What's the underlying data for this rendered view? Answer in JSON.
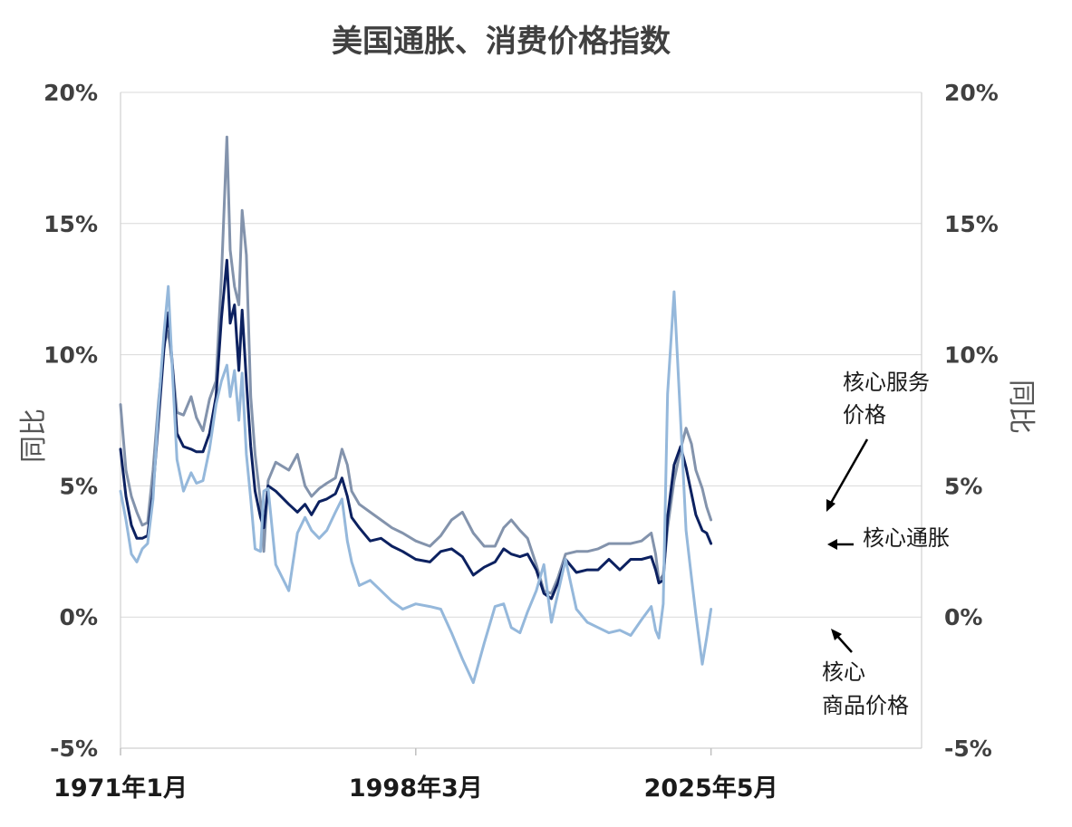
{
  "chart_data": {
    "type": "line",
    "title": "美国通胀、消费价格指数",
    "ylabel_left": "同比",
    "ylabel_right": "同比",
    "ylim": [
      -5,
      20
    ],
    "yticks": [
      -5,
      0,
      5,
      10,
      15,
      20
    ],
    "ytick_labels": [
      "-5%",
      "0%",
      "5%",
      "10%",
      "15%",
      "20%"
    ],
    "xlim": [
      1971.0,
      2044.8
    ],
    "x_tick_values": [
      1971.0,
      1998.2,
      2025.4
    ],
    "x_tick_labels": [
      "1971年1月",
      "1998年3月",
      "2025年5月"
    ],
    "grid": true,
    "series": [
      {
        "name": "核心服务价格",
        "color": "#8393ac",
        "points": [
          [
            1971.0,
            8.1
          ],
          [
            1971.5,
            5.6
          ],
          [
            1972.0,
            4.6
          ],
          [
            1972.5,
            4.0
          ],
          [
            1973.0,
            3.5
          ],
          [
            1973.5,
            3.6
          ],
          [
            1974.0,
            5.6
          ],
          [
            1974.5,
            8.2
          ],
          [
            1975.0,
            10.4
          ],
          [
            1975.4,
            10.9
          ],
          [
            1975.8,
            9.5
          ],
          [
            1976.2,
            7.8
          ],
          [
            1976.8,
            7.7
          ],
          [
            1977.5,
            8.4
          ],
          [
            1978.0,
            7.6
          ],
          [
            1978.6,
            7.1
          ],
          [
            1979.2,
            8.3
          ],
          [
            1979.8,
            9.0
          ],
          [
            1980.3,
            13.0
          ],
          [
            1980.8,
            18.3
          ],
          [
            1981.1,
            14.0
          ],
          [
            1981.5,
            12.6
          ],
          [
            1981.9,
            11.9
          ],
          [
            1982.2,
            15.5
          ],
          [
            1982.6,
            13.8
          ],
          [
            1983.0,
            8.4
          ],
          [
            1983.4,
            6.2
          ],
          [
            1983.9,
            4.4
          ],
          [
            1984.2,
            2.5
          ],
          [
            1984.6,
            5.2
          ],
          [
            1985.3,
            5.9
          ],
          [
            1986.5,
            5.6
          ],
          [
            1987.3,
            6.2
          ],
          [
            1988.0,
            5.0
          ],
          [
            1988.6,
            4.6
          ],
          [
            1989.3,
            4.9
          ],
          [
            1990.0,
            5.1
          ],
          [
            1990.8,
            5.3
          ],
          [
            1991.4,
            6.4
          ],
          [
            1991.9,
            5.8
          ],
          [
            1992.3,
            4.8
          ],
          [
            1993.0,
            4.3
          ],
          [
            1994.0,
            4.0
          ],
          [
            1995.0,
            3.7
          ],
          [
            1996.0,
            3.4
          ],
          [
            1997.0,
            3.2
          ],
          [
            1998.2,
            2.9
          ],
          [
            1999.5,
            2.7
          ],
          [
            2000.5,
            3.1
          ],
          [
            2001.5,
            3.7
          ],
          [
            2002.5,
            4.0
          ],
          [
            2003.5,
            3.2
          ],
          [
            2004.5,
            2.7
          ],
          [
            2005.5,
            2.7
          ],
          [
            2006.3,
            3.4
          ],
          [
            2007.0,
            3.7
          ],
          [
            2007.8,
            3.3
          ],
          [
            2008.5,
            3.0
          ],
          [
            2009.3,
            2.0
          ],
          [
            2010.0,
            1.0
          ],
          [
            2010.7,
            0.9
          ],
          [
            2011.3,
            1.5
          ],
          [
            2012.0,
            2.4
          ],
          [
            2013.0,
            2.5
          ],
          [
            2014.0,
            2.5
          ],
          [
            2015.0,
            2.6
          ],
          [
            2016.0,
            2.8
          ],
          [
            2017.0,
            2.8
          ],
          [
            2018.0,
            2.8
          ],
          [
            2019.0,
            2.9
          ],
          [
            2019.9,
            3.2
          ],
          [
            2020.3,
            2.4
          ],
          [
            2020.6,
            1.4
          ],
          [
            2021.0,
            1.6
          ],
          [
            2021.4,
            3.4
          ],
          [
            2022.0,
            5.2
          ],
          [
            2022.6,
            6.4
          ],
          [
            2023.1,
            7.2
          ],
          [
            2023.6,
            6.6
          ],
          [
            2024.0,
            5.6
          ],
          [
            2024.6,
            4.9
          ],
          [
            2025.0,
            4.2
          ],
          [
            2025.4,
            3.7
          ]
        ]
      },
      {
        "name": "核心通胀",
        "color": "#0c2160",
        "points": [
          [
            1971.0,
            6.4
          ],
          [
            1971.5,
            4.6
          ],
          [
            1972.0,
            3.5
          ],
          [
            1972.5,
            3.0
          ],
          [
            1973.0,
            3.0
          ],
          [
            1973.5,
            3.1
          ],
          [
            1974.0,
            4.8
          ],
          [
            1974.5,
            7.5
          ],
          [
            1975.0,
            10.2
          ],
          [
            1975.4,
            11.6
          ],
          [
            1975.8,
            9.5
          ],
          [
            1976.2,
            7.0
          ],
          [
            1976.8,
            6.5
          ],
          [
            1977.5,
            6.4
          ],
          [
            1978.0,
            6.3
          ],
          [
            1978.6,
            6.3
          ],
          [
            1979.2,
            7.0
          ],
          [
            1979.8,
            8.4
          ],
          [
            1980.3,
            11.4
          ],
          [
            1980.8,
            13.6
          ],
          [
            1981.1,
            11.2
          ],
          [
            1981.5,
            11.9
          ],
          [
            1981.9,
            9.4
          ],
          [
            1982.2,
            11.7
          ],
          [
            1982.6,
            9.0
          ],
          [
            1983.0,
            6.5
          ],
          [
            1983.4,
            4.8
          ],
          [
            1983.9,
            3.8
          ],
          [
            1984.2,
            3.4
          ],
          [
            1984.6,
            5.0
          ],
          [
            1985.3,
            4.8
          ],
          [
            1986.5,
            4.3
          ],
          [
            1987.3,
            4.0
          ],
          [
            1988.0,
            4.3
          ],
          [
            1988.6,
            3.9
          ],
          [
            1989.3,
            4.4
          ],
          [
            1990.0,
            4.5
          ],
          [
            1990.8,
            4.7
          ],
          [
            1991.4,
            5.3
          ],
          [
            1991.9,
            4.6
          ],
          [
            1992.3,
            3.8
          ],
          [
            1993.0,
            3.4
          ],
          [
            1994.0,
            2.9
          ],
          [
            1995.0,
            3.0
          ],
          [
            1996.0,
            2.7
          ],
          [
            1997.0,
            2.5
          ],
          [
            1998.2,
            2.2
          ],
          [
            1999.5,
            2.1
          ],
          [
            2000.5,
            2.5
          ],
          [
            2001.5,
            2.6
          ],
          [
            2002.5,
            2.3
          ],
          [
            2003.5,
            1.6
          ],
          [
            2004.5,
            1.9
          ],
          [
            2005.5,
            2.1
          ],
          [
            2006.3,
            2.6
          ],
          [
            2007.0,
            2.4
          ],
          [
            2007.8,
            2.3
          ],
          [
            2008.5,
            2.4
          ],
          [
            2009.3,
            1.8
          ],
          [
            2010.0,
            0.9
          ],
          [
            2010.7,
            0.7
          ],
          [
            2011.3,
            1.3
          ],
          [
            2012.0,
            2.2
          ],
          [
            2013.0,
            1.7
          ],
          [
            2014.0,
            1.8
          ],
          [
            2015.0,
            1.8
          ],
          [
            2016.0,
            2.2
          ],
          [
            2017.0,
            1.8
          ],
          [
            2018.0,
            2.2
          ],
          [
            2019.0,
            2.2
          ],
          [
            2019.9,
            2.3
          ],
          [
            2020.3,
            1.8
          ],
          [
            2020.6,
            1.3
          ],
          [
            2021.0,
            1.4
          ],
          [
            2021.4,
            3.8
          ],
          [
            2022.0,
            5.8
          ],
          [
            2022.6,
            6.5
          ],
          [
            2023.1,
            5.7
          ],
          [
            2023.6,
            4.7
          ],
          [
            2024.0,
            3.9
          ],
          [
            2024.6,
            3.3
          ],
          [
            2025.0,
            3.2
          ],
          [
            2025.4,
            2.8
          ]
        ]
      },
      {
        "name": "核心商品价格",
        "color": "#95b8db",
        "points": [
          [
            1971.0,
            4.8
          ],
          [
            1971.5,
            3.7
          ],
          [
            1972.0,
            2.4
          ],
          [
            1972.5,
            2.1
          ],
          [
            1973.0,
            2.6
          ],
          [
            1973.5,
            2.8
          ],
          [
            1974.0,
            4.5
          ],
          [
            1974.5,
            8.0
          ],
          [
            1975.0,
            10.8
          ],
          [
            1975.4,
            12.6
          ],
          [
            1975.8,
            9.2
          ],
          [
            1976.2,
            6.0
          ],
          [
            1976.8,
            4.8
          ],
          [
            1977.5,
            5.5
          ],
          [
            1978.0,
            5.1
          ],
          [
            1978.6,
            5.2
          ],
          [
            1979.2,
            6.4
          ],
          [
            1979.8,
            8.1
          ],
          [
            1980.3,
            9.0
          ],
          [
            1980.8,
            9.6
          ],
          [
            1981.1,
            8.4
          ],
          [
            1981.5,
            9.4
          ],
          [
            1981.9,
            7.5
          ],
          [
            1982.2,
            9.3
          ],
          [
            1982.6,
            6.2
          ],
          [
            1983.0,
            4.5
          ],
          [
            1983.4,
            2.6
          ],
          [
            1983.9,
            2.5
          ],
          [
            1984.2,
            4.8
          ],
          [
            1984.6,
            4.9
          ],
          [
            1985.3,
            2.0
          ],
          [
            1986.5,
            1.0
          ],
          [
            1987.3,
            3.2
          ],
          [
            1988.0,
            3.8
          ],
          [
            1988.6,
            3.3
          ],
          [
            1989.3,
            3.0
          ],
          [
            1990.0,
            3.3
          ],
          [
            1990.8,
            4.0
          ],
          [
            1991.4,
            4.5
          ],
          [
            1991.9,
            2.9
          ],
          [
            1992.3,
            2.1
          ],
          [
            1993.0,
            1.2
          ],
          [
            1994.0,
            1.4
          ],
          [
            1995.0,
            1.0
          ],
          [
            1996.0,
            0.6
          ],
          [
            1997.0,
            0.3
          ],
          [
            1998.2,
            0.5
          ],
          [
            1999.5,
            0.4
          ],
          [
            2000.5,
            0.3
          ],
          [
            2001.5,
            -0.6
          ],
          [
            2002.5,
            -1.6
          ],
          [
            2003.5,
            -2.5
          ],
          [
            2004.5,
            -1.0
          ],
          [
            2005.5,
            0.4
          ],
          [
            2006.3,
            0.5
          ],
          [
            2007.0,
            -0.4
          ],
          [
            2007.8,
            -0.6
          ],
          [
            2008.5,
            0.2
          ],
          [
            2009.3,
            1.0
          ],
          [
            2010.0,
            2.0
          ],
          [
            2010.7,
            -0.2
          ],
          [
            2011.3,
            0.9
          ],
          [
            2012.0,
            2.2
          ],
          [
            2013.0,
            0.3
          ],
          [
            2014.0,
            -0.2
          ],
          [
            2015.0,
            -0.4
          ],
          [
            2016.0,
            -0.6
          ],
          [
            2017.0,
            -0.5
          ],
          [
            2018.0,
            -0.7
          ],
          [
            2019.0,
            -0.1
          ],
          [
            2019.9,
            0.4
          ],
          [
            2020.3,
            -0.5
          ],
          [
            2020.6,
            -0.8
          ],
          [
            2021.0,
            0.5
          ],
          [
            2021.4,
            8.5
          ],
          [
            2022.0,
            12.4
          ],
          [
            2022.6,
            7.5
          ],
          [
            2023.1,
            3.3
          ],
          [
            2023.6,
            1.5
          ],
          [
            2024.0,
            0.1
          ],
          [
            2024.6,
            -1.8
          ],
          [
            2025.0,
            -0.8
          ],
          [
            2025.4,
            0.3
          ]
        ]
      }
    ],
    "annotations": [
      {
        "id": "core_services",
        "lines": [
          "核心服务",
          "价格"
        ]
      },
      {
        "id": "core_inflation",
        "lines": [
          "核心通胀"
        ]
      },
      {
        "id": "core_goods",
        "lines": [
          "核心",
          "商品价格"
        ]
      }
    ]
  }
}
